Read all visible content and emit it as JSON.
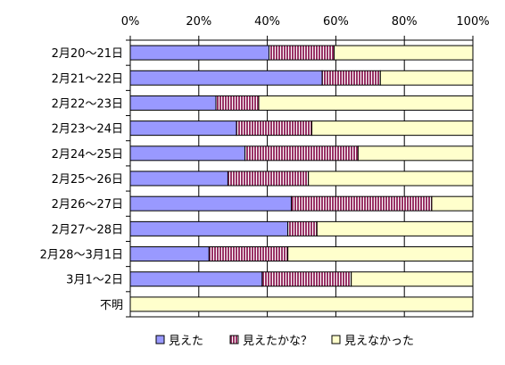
{
  "chart_data": {
    "type": "bar",
    "orientation": "horizontal",
    "stacked": "percent",
    "categories": [
      "2月20〜21日",
      "2月21〜22日",
      "2月22〜23日",
      "2月23〜24日",
      "2月24〜25日",
      "2月25〜26日",
      "2月26〜27日",
      "2月27〜28日",
      "2月28〜3月1日",
      "3月1〜2日",
      "不明"
    ],
    "series": [
      {
        "name": "見えた",
        "color": "#9999ff",
        "pattern": "solid",
        "values": [
          40.5,
          56,
          25,
          31,
          33.5,
          28.5,
          47,
          46,
          23,
          38.5,
          0
        ]
      },
      {
        "name": "見えたかな？",
        "color": "#993366",
        "pattern": "vertical-stripes",
        "values": [
          19,
          17,
          12.5,
          22,
          33,
          23.5,
          41,
          8.5,
          23,
          26,
          0
        ]
      },
      {
        "name": "見えなかった",
        "color": "#ffffcc",
        "pattern": "solid",
        "values": [
          40.5,
          27,
          62.5,
          47,
          33.5,
          48,
          12,
          45.5,
          54,
          35.5,
          100
        ]
      }
    ],
    "xaxis": {
      "ticks": [
        "0%",
        "20%",
        "40%",
        "60%",
        "80%",
        "100%"
      ],
      "range": [
        0,
        100
      ],
      "position": "top"
    },
    "grid": "vertical",
    "legend": "bottom"
  }
}
